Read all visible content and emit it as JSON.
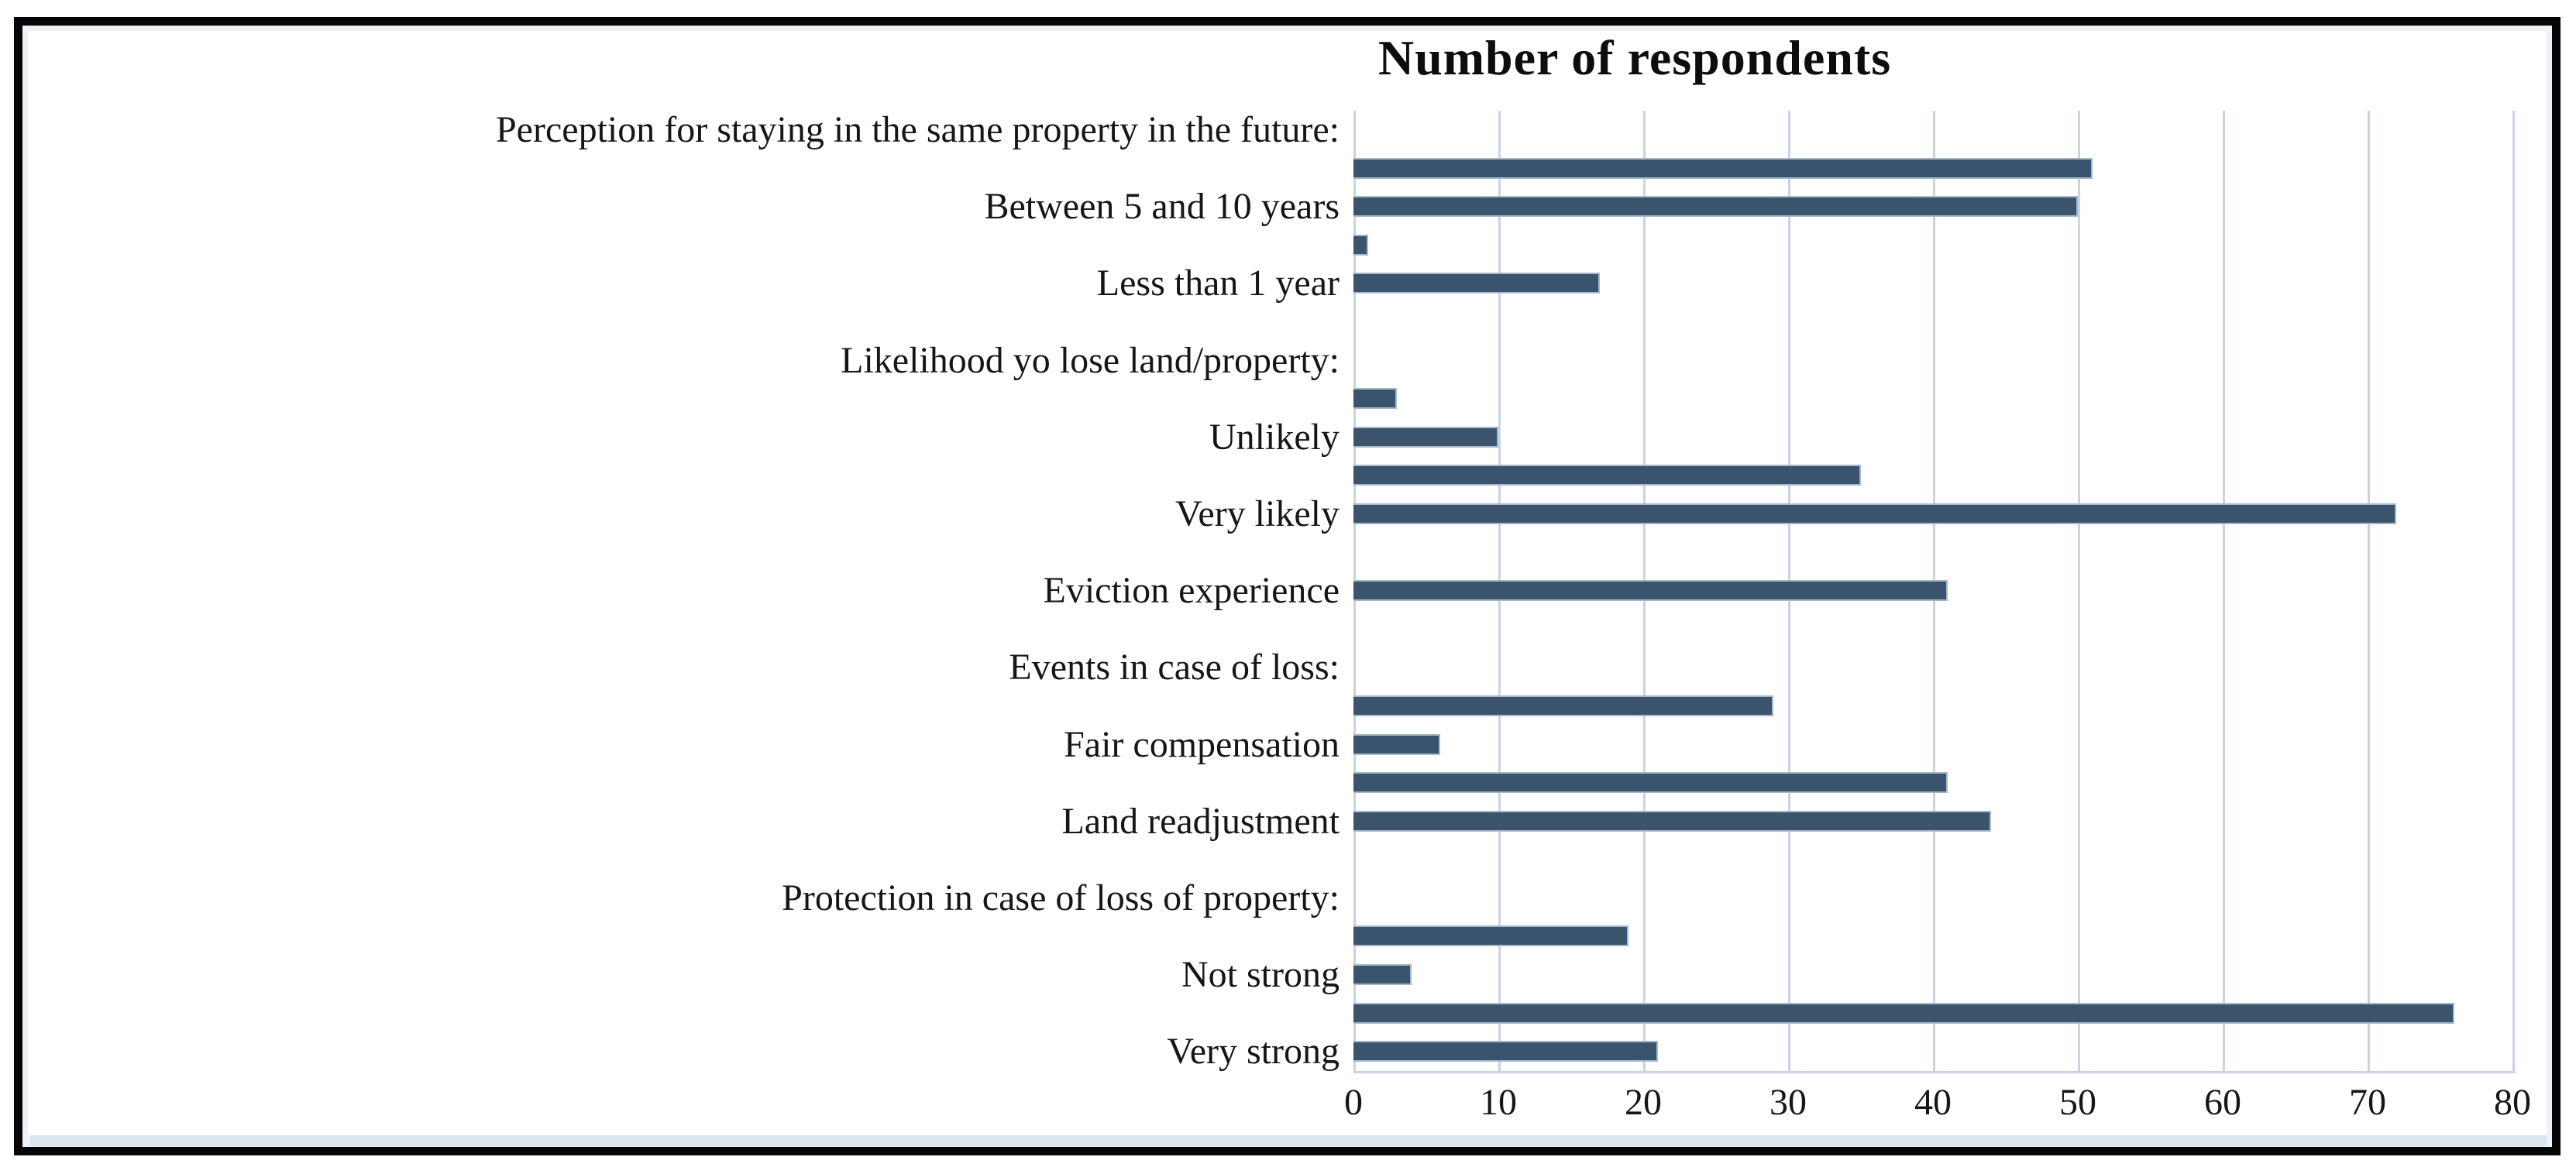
{
  "chart_data": {
    "type": "bar",
    "orientation": "horizontal",
    "title": "Number of respondents",
    "x_axis": {
      "min": 0,
      "max": 80,
      "tick_step": 10,
      "tick_labels": [
        "0",
        "10",
        "20",
        "30",
        "40",
        "50",
        "60",
        "70",
        "80"
      ],
      "grid": true
    },
    "legend": "none",
    "colors": {
      "bar": "#3a546d",
      "bar_border": "#a6b8c9",
      "gridline": "#c8d4e2",
      "title_text": "#0d0d0d",
      "label_text": "#161616",
      "frame": "#050505",
      "inner_edge": "#edf2f9",
      "bottom_strip": "#dce6f2"
    },
    "rows": [
      {
        "label": "Perception for staying in the same property in the future:",
        "value": null
      },
      {
        "label": "",
        "value": 51
      },
      {
        "label": "Between 5 and 10 years",
        "value": 50
      },
      {
        "label": "",
        "value": 1
      },
      {
        "label": "Less than 1 year",
        "value": 17
      },
      {
        "label": "",
        "value": null
      },
      {
        "label": "Likelihood yo lose land/property:",
        "value": null
      },
      {
        "label": "",
        "value": 3
      },
      {
        "label": "Unlikely",
        "value": 10
      },
      {
        "label": "",
        "value": 35
      },
      {
        "label": "Very likely",
        "value": 72
      },
      {
        "label": "",
        "value": null
      },
      {
        "label": "Eviction experience",
        "value": 41
      },
      {
        "label": "",
        "value": null
      },
      {
        "label": "Events in case of loss:",
        "value": null
      },
      {
        "label": "",
        "value": 29
      },
      {
        "label": "Fair compensation",
        "value": 6
      },
      {
        "label": "",
        "value": 41
      },
      {
        "label": "Land readjustment",
        "value": 44
      },
      {
        "label": "",
        "value": null
      },
      {
        "label": "Protection in case of loss of property:",
        "value": null
      },
      {
        "label": "",
        "value": 19
      },
      {
        "label": "Not strong",
        "value": 4
      },
      {
        "label": "",
        "value": 76
      },
      {
        "label": "Very strong",
        "value": 21
      }
    ]
  }
}
